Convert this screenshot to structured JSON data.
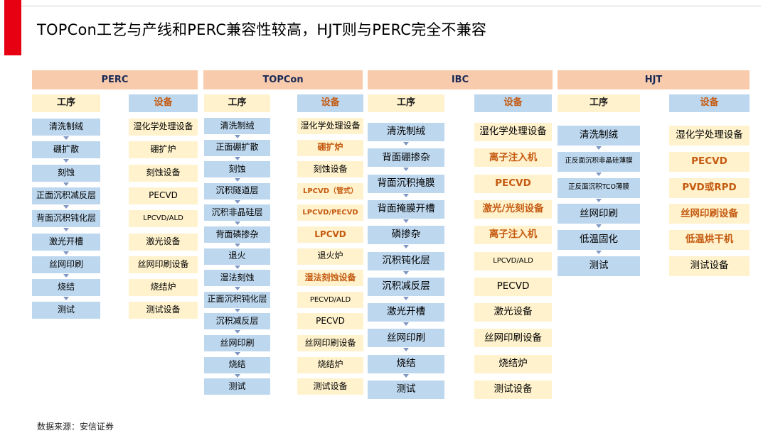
{
  "title": "TOPCon工艺与产线和PERC兼容性较高，HJT则与PERC完全不兼容",
  "source": "数据来源：安信证券",
  "columns": [
    {
      "name": "PERC",
      "process_label": "工序",
      "equipment_label": "设备",
      "process": [
        "清洗制绒",
        "硼扩散",
        "刻蚀",
        "正面沉积减反层",
        "背面沉积钝化层",
        "激光开槽",
        "丝网印刷",
        "烧结",
        "测试"
      ],
      "equipment": [
        {
          "text": "湿化学处理设备",
          "highlight": false
        },
        {
          "text": "硼扩炉",
          "highlight": false
        },
        {
          "text": "刻蚀设备",
          "highlight": false
        },
        {
          "text": "PECVD",
          "highlight": false
        },
        {
          "text": "LPCVD/ALD",
          "highlight": false
        },
        {
          "text": "激光设备",
          "highlight": false
        },
        {
          "text": "丝网印刷设备",
          "highlight": false
        },
        {
          "text": "烧结炉",
          "highlight": false
        },
        {
          "text": "测试设备",
          "highlight": false
        }
      ]
    },
    {
      "name": "TOPCon",
      "process_label": "工序",
      "equipment_label": "设备",
      "process": [
        "清洗制绒",
        "正面硼扩散",
        "刻蚀",
        "沉积隧道层",
        "沉积非晶硅层",
        "背面磷掺杂",
        "退火",
        "湿法刻蚀",
        "正面沉积钝化层",
        "沉积减反层",
        "丝网印刷",
        "烧结",
        "测试"
      ],
      "equipment": [
        {
          "text": "湿化学处理设备",
          "highlight": false
        },
        {
          "text": "硼扩炉",
          "highlight": true
        },
        {
          "text": "刻蚀设备",
          "highlight": false
        },
        {
          "text": "LPCVD（管式）",
          "highlight": true
        },
        {
          "text": "LPCVD/PECVD",
          "highlight": true
        },
        {
          "text": "LPCVD",
          "highlight": true
        },
        {
          "text": "退火炉",
          "highlight": false
        },
        {
          "text": "湿法刻蚀设备",
          "highlight": true
        },
        {
          "text": "PECVD/ALD",
          "highlight": false
        },
        {
          "text": "PECVD",
          "highlight": false
        },
        {
          "text": "丝网印刷设备",
          "highlight": false
        },
        {
          "text": "烧结炉",
          "highlight": false
        },
        {
          "text": "测试设备",
          "highlight": false
        }
      ]
    },
    {
      "name": "IBC",
      "process_label": "工序",
      "equipment_label": "设备",
      "process": [
        "清洗制绒",
        "背面硼掺杂",
        "背面沉积掩膜",
        "背面掩膜开槽",
        "磷掺杂",
        "沉积钝化层",
        "沉积减反层",
        "激光开槽",
        "丝网印刷",
        "烧结",
        "测试"
      ],
      "equipment": [
        {
          "text": "湿化学处理设备",
          "highlight": false
        },
        {
          "text": "离子注入机",
          "highlight": true
        },
        {
          "text": "PECVD",
          "highlight": true
        },
        {
          "text": "激光/光刻设备",
          "highlight": true
        },
        {
          "text": "离子注入机",
          "highlight": true
        },
        {
          "text": "LPCVD/ALD",
          "highlight": false
        },
        {
          "text": "PECVD",
          "highlight": false
        },
        {
          "text": "激光设备",
          "highlight": false
        },
        {
          "text": "丝网印刷设备",
          "highlight": false
        },
        {
          "text": "烧结炉",
          "highlight": false
        },
        {
          "text": "测试设备",
          "highlight": false
        }
      ]
    },
    {
      "name": "HJT",
      "process_label": "工序",
      "equipment_label": "设备",
      "process": [
        "清洗制绒",
        "正反面沉积非晶硅薄膜",
        "正反面沉积TCO薄膜",
        "丝网印刷",
        "低温固化",
        "测试"
      ],
      "equipment": [
        {
          "text": "湿化学处理设备",
          "highlight": false
        },
        {
          "text": "PECVD",
          "highlight": true
        },
        {
          "text": "PVD或RPD",
          "highlight": true
        },
        {
          "text": "丝网印刷设备",
          "highlight": true
        },
        {
          "text": "低温烘干机",
          "highlight": true
        },
        {
          "text": "测试设备",
          "highlight": false
        }
      ]
    }
  ],
  "colors": {
    "header": "#f8cbad",
    "process_box": "#bdd7ee",
    "equipment_box": "#fff2cc",
    "highlight_text": "#c55a11",
    "accent": "#e60012"
  }
}
